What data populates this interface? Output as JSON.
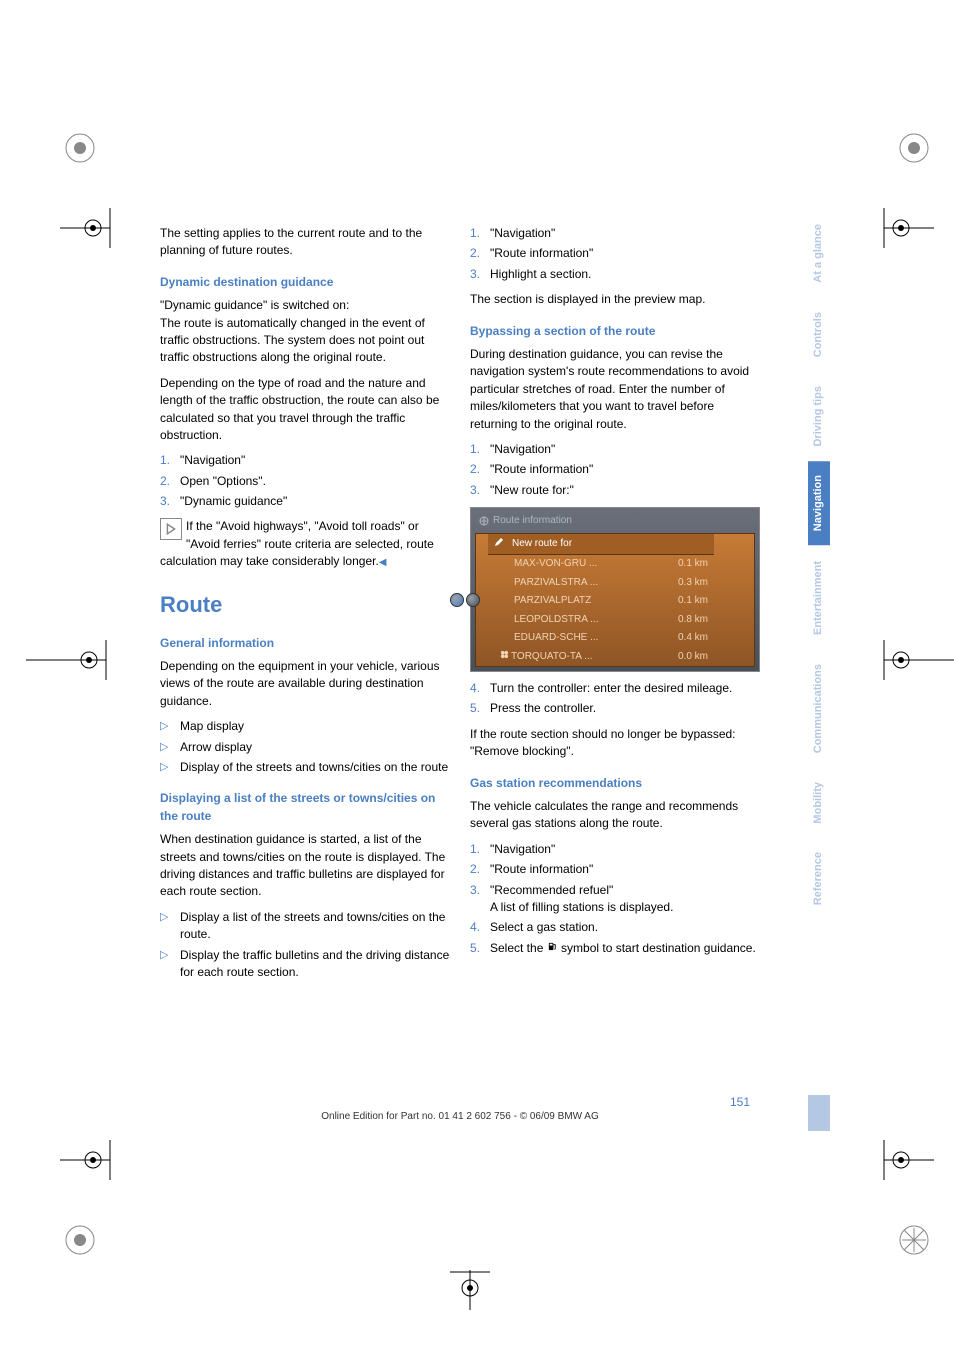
{
  "intro_para": "The setting applies to the current route and to the planning of future routes.",
  "sec1": {
    "title": "Dynamic destination guidance",
    "p1": "\"Dynamic guidance\" is switched on:",
    "p2": "The route is automatically changed in the event of traffic obstructions. The system does not point out traffic obstructions along the original route.",
    "p3": "Depending on the type of road and the nature and length of the traffic obstruction, the route can also be calculated so that you travel through the traffic obstruction.",
    "steps": [
      "\"Navigation\"",
      "Open \"Options\".",
      "\"Dynamic guidance\""
    ],
    "note": "If the \"Avoid highways\", \"Avoid toll roads\" or \"Avoid ferries\" route criteria are selected, route calculation may take considerably longer."
  },
  "route": {
    "title": "Route",
    "gen_title": "General information",
    "gen_p": "Depending on the equipment in your vehicle, various views of the route are available during destination guidance.",
    "gen_bullets": [
      "Map display",
      "Arrow display",
      "Display of the streets and towns/cities on the route"
    ],
    "list_title": "Displaying a list of the streets or towns/cities on the route",
    "list_p": "When destination guidance is started, a list of the streets and towns/cities on the route is displayed. The driving distances and traffic bulletins are displayed for each route section.",
    "list_bullets": [
      "Display a list of the streets and towns/cities on the route.",
      "Display the traffic bulletins and the driving distance for each route section."
    ]
  },
  "col2_top": {
    "steps": [
      "\"Navigation\"",
      "\"Route information\"",
      "Highlight a section."
    ],
    "p": "The section is displayed in the preview map."
  },
  "bypass": {
    "title": "Bypassing a section of the route",
    "p": "During destination guidance, you can revise the navigation system's route recommendations to avoid particular stretches of road. Enter the number of miles/kilometers that you want to travel before returning to the original route.",
    "steps": [
      "\"Navigation\"",
      "\"Route information\"",
      "\"New route for:\""
    ],
    "steps2": [
      "Turn the controller: enter the desired mileage.",
      "Press the controller."
    ],
    "p2": "If the route section should no longer be bypassed: \"Remove blocking\"."
  },
  "screenshot": {
    "title": "Route information",
    "header": "New route for",
    "rows": [
      {
        "name": "MAX-VON-GRU ...",
        "dist": "0.1 km"
      },
      {
        "name": "PARZIVALSTRA ...",
        "dist": "0.3 km"
      },
      {
        "name": "PARZIVALPLATZ",
        "dist": "0.1 km"
      },
      {
        "name": "LEOPOLDSTRA ...",
        "dist": "0.8 km"
      },
      {
        "name": "EDUARD-SCHE ...",
        "dist": "0.4 km"
      },
      {
        "name": "TORQUATO-TA ...",
        "dist": "0.0 km"
      }
    ]
  },
  "gas": {
    "title": "Gas station recommendations",
    "p": "The vehicle calculates the range and recommends several gas stations along the route.",
    "steps": [
      "\"Navigation\"",
      "\"Route information\"",
      "\"Recommended refuel\"\nA list of filling stations is displayed.",
      "Select a gas station."
    ],
    "step5_pre": "Select the ",
    "step5_post": " symbol to start destination guidance."
  },
  "tabs": [
    "At a glance",
    "Controls",
    "Driving tips",
    "Navigation",
    "Entertainment",
    "Communications",
    "Mobility",
    "Reference"
  ],
  "active_tab": 3,
  "page_number": "151",
  "footer_text": "Online Edition for Part no. 01 41 2 602 756 - © 06/09 BMW AG"
}
